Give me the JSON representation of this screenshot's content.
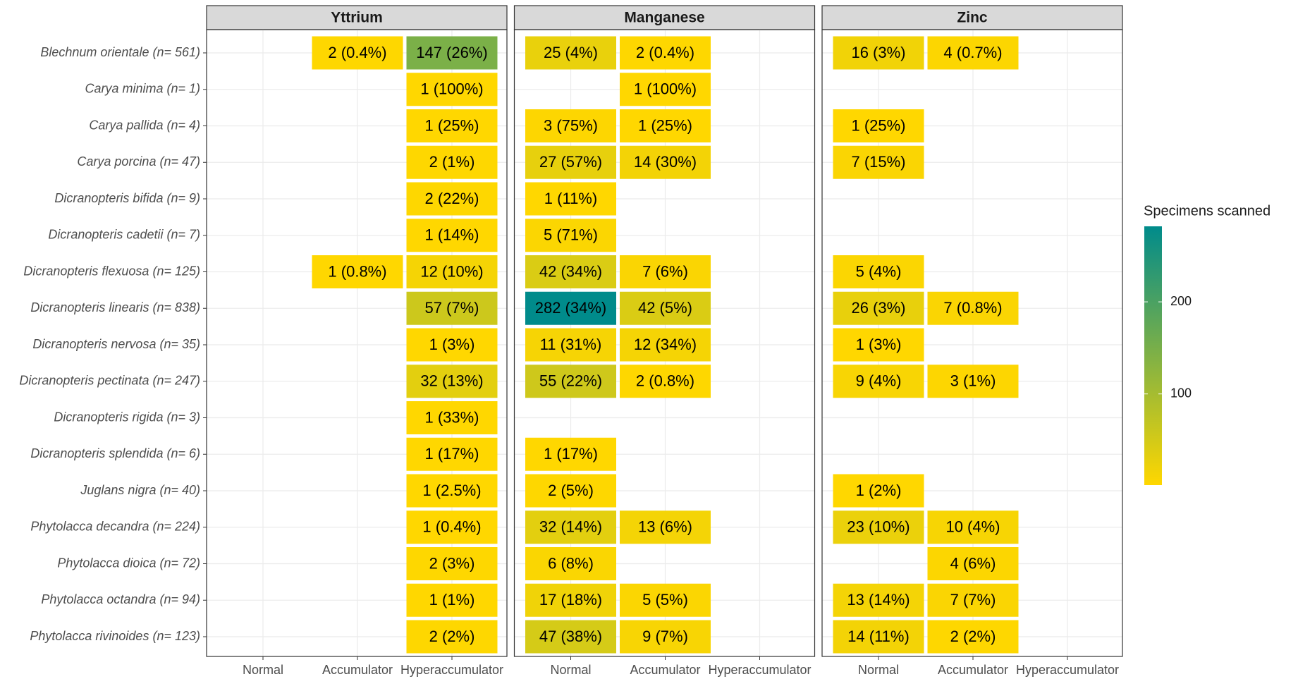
{
  "chart_data": {
    "type": "heatmap",
    "rows": [
      "Blechnum orientale (n= 561)",
      "Carya minima (n= 1)",
      "Carya pallida (n= 4)",
      "Carya porcina (n= 47)",
      "Dicranopteris bifida (n= 9)",
      "Dicranopteris cadetii (n= 7)",
      "Dicranopteris flexuosa (n= 125)",
      "Dicranopteris linearis (n= 838)",
      "Dicranopteris nervosa (n= 35)",
      "Dicranopteris pectinata (n= 247)",
      "Dicranopteris rigida (n= 3)",
      "Dicranopteris splendida (n= 6)",
      "Juglans nigra (n= 40)",
      "Phytolacca decandra (n= 224)",
      "Phytolacca dioica (n= 72)",
      "Phytolacca octandra (n= 94)",
      "Phytolacca rivinoides (n= 123)"
    ],
    "columns": [
      "Normal",
      "Accumulator",
      "Hyperaccumulator"
    ],
    "facets": [
      {
        "name": "Yttrium",
        "values": [
          [
            null,
            2,
            147
          ],
          [
            null,
            null,
            1
          ],
          [
            null,
            null,
            1
          ],
          [
            null,
            null,
            2
          ],
          [
            null,
            null,
            2
          ],
          [
            null,
            null,
            1
          ],
          [
            null,
            1,
            12
          ],
          [
            null,
            null,
            57
          ],
          [
            null,
            null,
            1
          ],
          [
            null,
            null,
            32
          ],
          [
            null,
            null,
            1
          ],
          [
            null,
            null,
            1
          ],
          [
            null,
            null,
            1
          ],
          [
            null,
            null,
            1
          ],
          [
            null,
            null,
            2
          ],
          [
            null,
            null,
            1
          ],
          [
            null,
            null,
            2
          ]
        ],
        "value_labels": [
          [
            null,
            "2 (0.4%)",
            "147 (26%)"
          ],
          [
            null,
            null,
            "1 (100%)"
          ],
          [
            null,
            null,
            "1 (25%)"
          ],
          [
            null,
            null,
            "2 (1%)"
          ],
          [
            null,
            null,
            "2 (22%)"
          ],
          [
            null,
            null,
            "1 (14%)"
          ],
          [
            null,
            "1 (0.8%)",
            "12 (10%)"
          ],
          [
            null,
            null,
            "57 (7%)"
          ],
          [
            null,
            null,
            "1 (3%)"
          ],
          [
            null,
            null,
            "32 (13%)"
          ],
          [
            null,
            null,
            "1 (33%)"
          ],
          [
            null,
            null,
            "1 (17%)"
          ],
          [
            null,
            null,
            "1 (2.5%)"
          ],
          [
            null,
            null,
            "1 (0.4%)"
          ],
          [
            null,
            null,
            "2 (3%)"
          ],
          [
            null,
            null,
            "1 (1%)"
          ],
          [
            null,
            null,
            "2 (2%)"
          ]
        ]
      },
      {
        "name": "Manganese",
        "values": [
          [
            25,
            2,
            null
          ],
          [
            null,
            1,
            null
          ],
          [
            3,
            1,
            null
          ],
          [
            27,
            14,
            null
          ],
          [
            1,
            null,
            null
          ],
          [
            5,
            null,
            null
          ],
          [
            42,
            7,
            null
          ],
          [
            282,
            42,
            null
          ],
          [
            11,
            12,
            null
          ],
          [
            55,
            2,
            null
          ],
          [
            null,
            null,
            null
          ],
          [
            1,
            null,
            null
          ],
          [
            2,
            null,
            null
          ],
          [
            32,
            13,
            null
          ],
          [
            6,
            null,
            null
          ],
          [
            17,
            5,
            null
          ],
          [
            47,
            9,
            null
          ]
        ],
        "value_labels": [
          [
            "25 (4%)",
            "2 (0.4%)",
            null
          ],
          [
            null,
            "1 (100%)",
            null
          ],
          [
            "3 (75%)",
            "1 (25%)",
            null
          ],
          [
            "27 (57%)",
            "14 (30%)",
            null
          ],
          [
            "1 (11%)",
            null,
            null
          ],
          [
            "5 (71%)",
            null,
            null
          ],
          [
            "42 (34%)",
            "7 (6%)",
            null
          ],
          [
            "282 (34%)",
            "42 (5%)",
            null
          ],
          [
            "11 (31%)",
            "12 (34%)",
            null
          ],
          [
            "55 (22%)",
            "2 (0.8%)",
            null
          ],
          [
            null,
            null,
            null
          ],
          [
            "1 (17%)",
            null,
            null
          ],
          [
            "2 (5%)",
            null,
            null
          ],
          [
            "32 (14%)",
            "13 (6%)",
            null
          ],
          [
            "6 (8%)",
            null,
            null
          ],
          [
            "17 (18%)",
            "5 (5%)",
            null
          ],
          [
            "47 (38%)",
            "9 (7%)",
            null
          ]
        ]
      },
      {
        "name": "Zinc",
        "values": [
          [
            16,
            4,
            null
          ],
          [
            null,
            null,
            null
          ],
          [
            1,
            null,
            null
          ],
          [
            7,
            null,
            null
          ],
          [
            null,
            null,
            null
          ],
          [
            null,
            null,
            null
          ],
          [
            5,
            null,
            null
          ],
          [
            26,
            7,
            null
          ],
          [
            1,
            null,
            null
          ],
          [
            9,
            3,
            null
          ],
          [
            null,
            null,
            null
          ],
          [
            null,
            null,
            null
          ],
          [
            1,
            null,
            null
          ],
          [
            23,
            10,
            null
          ],
          [
            null,
            4,
            null
          ],
          [
            13,
            7,
            null
          ],
          [
            14,
            2,
            null
          ]
        ],
        "value_labels": [
          [
            "16 (3%)",
            "4 (0.7%)",
            null
          ],
          [
            null,
            null,
            null
          ],
          [
            "1 (25%)",
            null,
            null
          ],
          [
            "7 (15%)",
            null,
            null
          ],
          [
            null,
            null,
            null
          ],
          [
            null,
            null,
            null
          ],
          [
            "5 (4%)",
            null,
            null
          ],
          [
            "26 (3%)",
            "7 (0.8%)",
            null
          ],
          [
            "1 (3%)",
            null,
            null
          ],
          [
            "9 (4%)",
            "3 (1%)",
            null
          ],
          [
            null,
            null,
            null
          ],
          [
            null,
            null,
            null
          ],
          [
            "1 (2%)",
            null,
            null
          ],
          [
            "23 (10%)",
            "10 (4%)",
            null
          ],
          [
            null,
            "4 (6%)",
            null
          ],
          [
            "13 (14%)",
            "7 (7%)",
            null
          ],
          [
            "14 (11%)",
            "2 (2%)",
            null
          ]
        ]
      }
    ],
    "colorbar": {
      "title": "Specimens scanned",
      "lim": [
        1,
        282
      ],
      "ticks": [
        100,
        200
      ],
      "colors": [
        "#FFD700",
        "#008B8B"
      ]
    },
    "grid": true
  }
}
